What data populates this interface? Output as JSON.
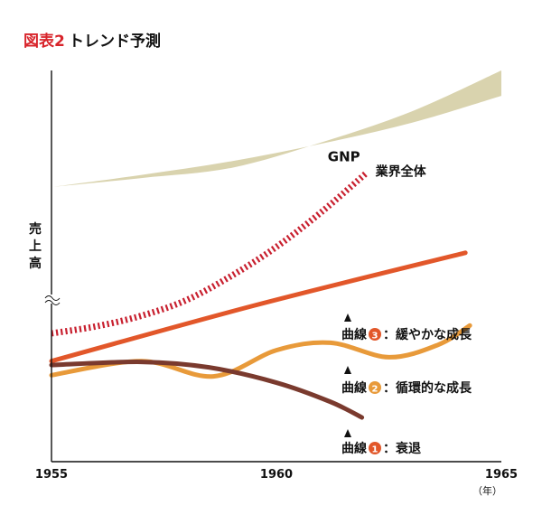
{
  "figure": {
    "number": "図表2",
    "title": "トレンド予測"
  },
  "chart_data": {
    "type": "line",
    "title": "トレンド予測",
    "ylabel": "売上高",
    "xlabel": "",
    "x_unit": "（年）",
    "xlim": [
      1955,
      1965
    ],
    "x_ticks": [
      1955,
      1960,
      1965
    ],
    "ylim": [
      0,
      100
    ],
    "grid": false,
    "band": {
      "name": "GNP",
      "color": "#d9d3ae",
      "lower": [
        [
          1955,
          70.2
        ],
        [
          1957,
          73.3
        ],
        [
          1959,
          76.8
        ],
        [
          1961,
          81.3
        ],
        [
          1963,
          86.6
        ],
        [
          1965,
          93.5
        ]
      ],
      "upper": [
        [
          1955,
          70.2
        ],
        [
          1957,
          72.5
        ],
        [
          1959,
          75.1
        ],
        [
          1961,
          81.6
        ],
        [
          1963,
          89.5
        ],
        [
          1965,
          100.0
        ]
      ]
    },
    "series": [
      {
        "name": "業界全体",
        "style": "dashed",
        "color": "#c8202f",
        "points": [
          [
            1955,
            32.8
          ],
          [
            1956,
            34.6
          ],
          [
            1957,
            37.3
          ],
          [
            1958,
            41.3
          ],
          [
            1959,
            47.5
          ],
          [
            1960,
            54.9
          ],
          [
            1961,
            63.8
          ],
          [
            1962,
            73.8
          ]
        ]
      },
      {
        "name": "曲線③：緩やかな成長",
        "color": "#e2572a",
        "points": [
          [
            1955,
            25.7
          ],
          [
            1959.5,
            39.9
          ],
          [
            1964.2,
            53.4
          ]
        ]
      },
      {
        "name": "曲線②：循環的な成長",
        "color": "#e89a3a",
        "points": [
          [
            1955,
            22.1
          ],
          [
            1957,
            25.7
          ],
          [
            1958.6,
            21.8
          ],
          [
            1960,
            28.5
          ],
          [
            1961.2,
            30.4
          ],
          [
            1962.5,
            26.7
          ],
          [
            1963.6,
            29.9
          ],
          [
            1964.3,
            34.8
          ]
        ]
      },
      {
        "name": "曲線①：衰退",
        "color": "#7a3a2e",
        "points": [
          [
            1955,
            24.7
          ],
          [
            1957,
            25.5
          ],
          [
            1958.5,
            24.1
          ],
          [
            1960,
            20.2
          ],
          [
            1961.2,
            15.3
          ],
          [
            1961.9,
            11.3
          ]
        ]
      }
    ],
    "annotations": [
      {
        "target": "GNP",
        "text": "GNP"
      },
      {
        "target": "業界全体",
        "text": "業界全体"
      },
      {
        "target": "曲線③：緩やかな成長",
        "prefix": "曲線",
        "num": "3",
        "text": "：緩やかな成長"
      },
      {
        "target": "曲線②：循環的な成長",
        "prefix": "曲線",
        "num": "2",
        "text": "：循環的な成長"
      },
      {
        "target": "曲線①：衰退",
        "prefix": "曲線",
        "num": "1",
        "text": "：衰退"
      }
    ]
  }
}
